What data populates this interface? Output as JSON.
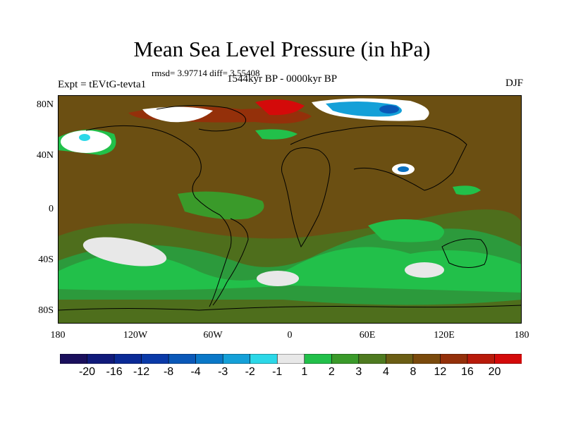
{
  "title": "Mean Sea Level Pressure (in hPa)",
  "stats": "rmsd= 3.97714 diff= 3.55408",
  "experiment": "Expt = tEVtG-tevta1",
  "period": "1544kyr BP - 0000kyr BP",
  "season": "DJF",
  "map": {
    "lon_range": [
      -180,
      180
    ],
    "lat_range": [
      -90,
      90
    ],
    "y_ticks": [
      "80N",
      "40N",
      "0",
      "40S",
      "80S"
    ],
    "x_ticks": [
      "180",
      "120W",
      "60W",
      "0",
      "60E",
      "120E",
      "180"
    ],
    "background_color": "#6b4f12",
    "regions": [
      {
        "name": "north-pacific-high",
        "color": "#ffffff",
        "level": "-1 to 1"
      },
      {
        "name": "arctic-canada-high",
        "color": "#e83a1e",
        "level": "16 to 20"
      },
      {
        "name": "greenland-sea-high",
        "color": "#d22a10",
        "level": "16 to 20"
      },
      {
        "name": "siberia-low",
        "color": "#1a8fd0",
        "level": "-8 to -4"
      },
      {
        "name": "tibet-low",
        "color": "#0a70c0",
        "level": "-4 to -3"
      },
      {
        "name": "south-pacific-anomaly",
        "color": "#e8e8e8",
        "level": "-1 to 1"
      },
      {
        "name": "south-atlantic-anomaly",
        "color": "#e8e8e8",
        "level": "-1 to 1"
      },
      {
        "name": "indian-ocean-anomaly",
        "color": "#e8e8e8",
        "level": "-1 to 1"
      }
    ]
  },
  "colorbar": {
    "labels": [
      "-20",
      "-16",
      "-12",
      "-8",
      "-4",
      "-3",
      "-2",
      "-1",
      "1",
      "2",
      "3",
      "4",
      "8",
      "12",
      "16",
      "20"
    ],
    "colors": [
      "#1a0f5c",
      "#101a7a",
      "#0a2a96",
      "#0a3aa8",
      "#0a58b8",
      "#0a78c8",
      "#14a0d8",
      "#2cd8e8",
      "#e8e8e8",
      "#22c04a",
      "#3a9a2a",
      "#4e7a20",
      "#6b5e14",
      "#7a4a0c",
      "#94300a",
      "#b81a0a",
      "#d40a0a"
    ]
  }
}
